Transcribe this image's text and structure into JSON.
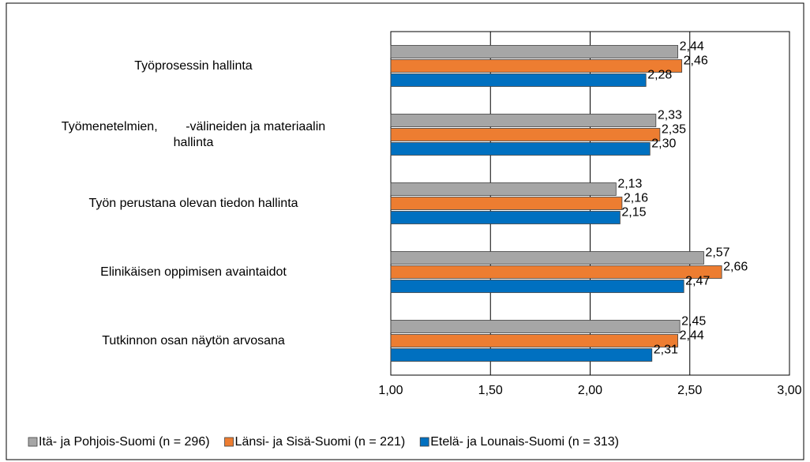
{
  "chart_data": {
    "type": "hbar",
    "categories": [
      "Työprosessin hallinta",
      "Työmenetelmien,        -välineiden ja materiaalin\nhallinta",
      "Työn perustana olevan tiedon hallinta",
      "Elinikäisen oppimisen avaintaidot",
      "Tutkinnon osan näytön arvosana"
    ],
    "series": [
      {
        "name": "Itä- ja Pohjois-Suomi (n = 296)",
        "color": "#a6a6a6",
        "values": [
          2.44,
          2.33,
          2.13,
          2.57,
          2.45
        ],
        "value_labels": [
          "2,44",
          "2,33",
          "2,13",
          "2,57",
          "2,45"
        ]
      },
      {
        "name": "Länsi- ja Sisä-Suomi (n = 221)",
        "color": "#ed7d31",
        "values": [
          2.46,
          2.35,
          2.16,
          2.66,
          2.44
        ],
        "value_labels": [
          "2,46",
          "2,35",
          "2,16",
          "2,66",
          "2,44"
        ]
      },
      {
        "name": "Etelä- ja Lounais-Suomi (n = 313)",
        "color": "#0070c0",
        "values": [
          2.28,
          2.3,
          2.15,
          2.47,
          2.31
        ],
        "value_labels": [
          "2,28",
          "2,30",
          "2,15",
          "2,47",
          "2,31"
        ]
      }
    ],
    "xlim": [
      1,
      3
    ],
    "xticks": [
      {
        "value": 1,
        "label": "1,00"
      },
      {
        "value": 1.5,
        "label": "1,50"
      },
      {
        "value": 2,
        "label": "2,00"
      },
      {
        "value": 2.5,
        "label": "2,50"
      },
      {
        "value": 3,
        "label": "3,00"
      }
    ],
    "grid": true,
    "legend": "bottom"
  }
}
